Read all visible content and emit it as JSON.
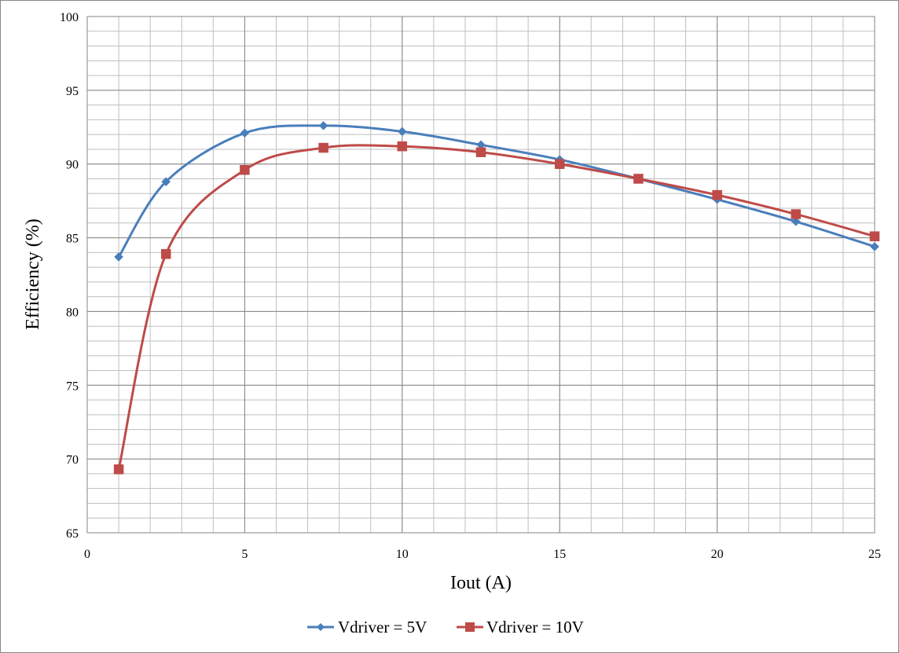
{
  "chart_data": {
    "type": "line",
    "title": "",
    "xlabel": "Iout (A)",
    "ylabel": "Efficiency (%)",
    "xlim": [
      0,
      25
    ],
    "ylim": [
      65,
      100
    ],
    "x_ticks": [
      "0",
      "5",
      "10",
      "15",
      "20",
      "25"
    ],
    "y_ticks": [
      "65",
      "70",
      "75",
      "80",
      "85",
      "90",
      "95",
      "100"
    ],
    "x_minor_step": 1,
    "y_minor_step": 1,
    "grid": true,
    "smooth": true,
    "legend_position": "bottom",
    "series": [
      {
        "name": "Vdriver = 5V",
        "color": "#4a7ebb",
        "marker": "diamond",
        "x": [
          1,
          2.5,
          5,
          7.5,
          10,
          12.5,
          15,
          17.5,
          20,
          22.5,
          25
        ],
        "y": [
          83.7,
          88.8,
          92.1,
          92.6,
          92.2,
          91.3,
          90.3,
          89.0,
          87.6,
          86.1,
          84.4
        ]
      },
      {
        "name": "Vdriver = 10V",
        "color": "#be4b48",
        "marker": "square",
        "x": [
          1,
          2.5,
          5,
          7.5,
          10,
          12.5,
          15,
          17.5,
          20,
          22.5,
          25
        ],
        "y": [
          69.3,
          83.9,
          89.6,
          91.1,
          91.2,
          90.8,
          90.0,
          89.0,
          87.9,
          86.6,
          85.1
        ]
      }
    ]
  }
}
